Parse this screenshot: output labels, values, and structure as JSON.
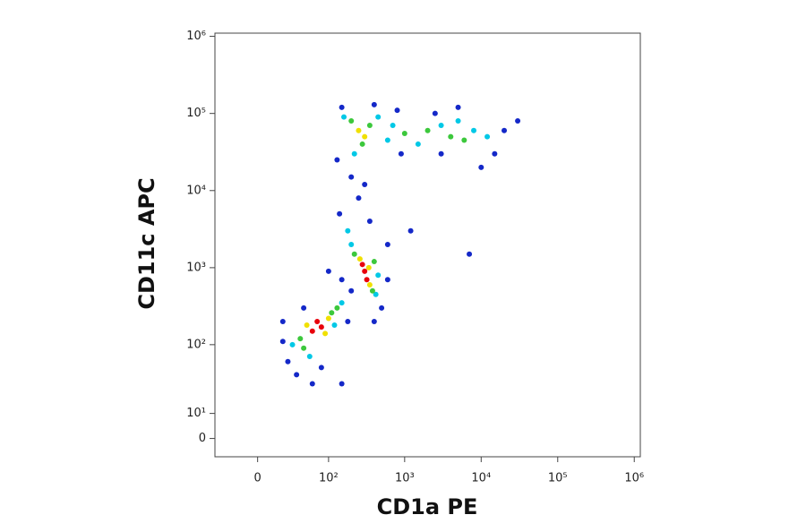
{
  "chart_data": {
    "type": "scatter",
    "x_label": "CD1a PE",
    "y_label": "CD11c APC",
    "xscale": "biexponential",
    "yscale": "biexponential",
    "xlim": [
      -40,
      1200000
    ],
    "ylim": [
      -7,
      1100000
    ],
    "xticks": [
      0,
      {
        "value": 100,
        "label": "10²"
      },
      {
        "value": 1000,
        "label": "10³"
      },
      {
        "value": 10000,
        "label": "10⁴"
      },
      {
        "value": 100000,
        "label": "10⁵"
      },
      {
        "value": 1000000,
        "label": "10⁶"
      }
    ],
    "yticks": [
      0,
      {
        "value": 10,
        "label": "10¹"
      },
      {
        "value": 100,
        "label": "10²"
      },
      {
        "value": 1000,
        "label": "10³"
      },
      {
        "value": 10000,
        "label": "10⁴"
      },
      {
        "value": 100000,
        "label": "10⁵"
      },
      {
        "value": 1000000,
        "label": "10⁶"
      }
    ],
    "series": [
      {
        "color": "#1428c8",
        "x": [
          20,
          25,
          35,
          60,
          180,
          200,
          150,
          100,
          500,
          600,
          140,
          250,
          200,
          300,
          130,
          350,
          150,
          400,
          800,
          2500,
          5000,
          20000,
          30000,
          15000,
          3000,
          900,
          10000,
          20,
          45,
          80,
          600,
          1200,
          7000,
          150,
          400
        ],
        "y": [
          110,
          60,
          40,
          30,
          200,
          500,
          700,
          900,
          300,
          700,
          5000,
          8000,
          15000,
          12000,
          25000,
          4000,
          120000,
          130000,
          110000,
          100000,
          120000,
          60000,
          80000,
          30000,
          30000,
          30000,
          20000,
          200,
          300,
          50,
          2000,
          3000,
          1500,
          30,
          200
        ]
      },
      {
        "color": "#00c8e6",
        "x": [
          30,
          150,
          55,
          120,
          420,
          200,
          450,
          180,
          160,
          450,
          220,
          700,
          1500,
          3000,
          8000,
          12000,
          5000,
          600
        ],
        "y": [
          100,
          350,
          70,
          180,
          450,
          2000,
          800,
          3000,
          90000,
          90000,
          30000,
          70000,
          40000,
          70000,
          60000,
          50000,
          80000,
          45000
        ]
      },
      {
        "color": "#3cc83c",
        "x": [
          40,
          110,
          45,
          130,
          380,
          220,
          400,
          200,
          350,
          280,
          2000,
          4000,
          1000,
          6000
        ],
        "y": [
          120,
          260,
          90,
          300,
          500,
          1500,
          1200,
          80000,
          70000,
          40000,
          60000,
          50000,
          55000,
          45000
        ]
      },
      {
        "color": "#f0e000",
        "x": [
          90,
          50,
          100,
          350,
          260,
          340,
          250,
          300
        ],
        "y": [
          140,
          180,
          220,
          600,
          1300,
          1000,
          60000,
          50000
        ]
      },
      {
        "color": "#e8000b",
        "x": [
          80,
          60,
          300,
          320,
          280,
          70
        ],
        "y": [
          170,
          150,
          900,
          700,
          1100,
          200
        ]
      }
    ]
  }
}
